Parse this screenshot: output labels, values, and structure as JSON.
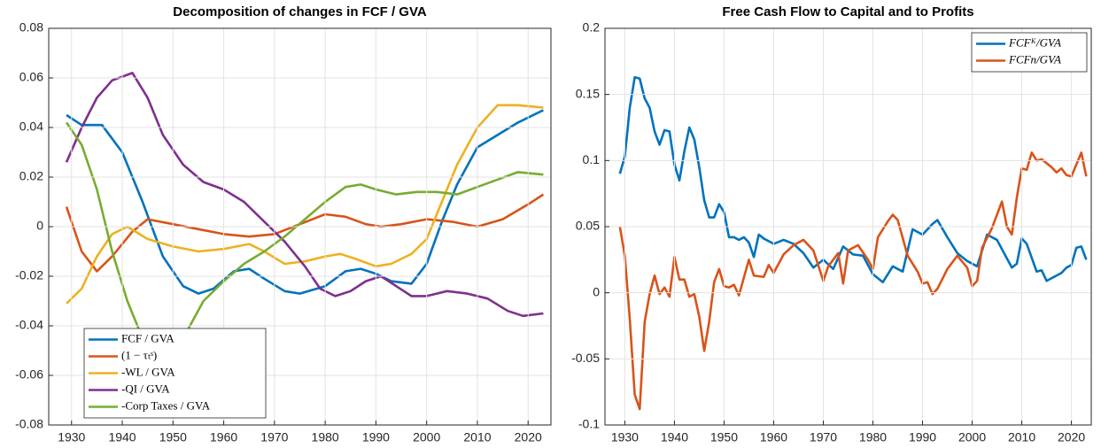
{
  "chart_data": [
    {
      "type": "line",
      "title": "Decomposition of changes in FCF / GVA",
      "xlim": [
        1925.5,
        2024.5
      ],
      "xticks": [
        1930,
        1940,
        1950,
        1960,
        1970,
        1980,
        1990,
        2000,
        2010,
        2020
      ],
      "ylim": [
        -0.08,
        0.08
      ],
      "yticks": [
        -0.08,
        -0.06,
        -0.04,
        -0.02,
        0,
        0.02,
        0.04,
        0.06,
        0.08
      ],
      "grid": true,
      "legend": "bottom-left",
      "legend_italic": false,
      "series": [
        {
          "name": "FCF / GVA",
          "color": "#0072BD",
          "x": [
            1929,
            1932,
            1936,
            1940,
            1944,
            1948,
            1952,
            1955,
            1958,
            1962,
            1965,
            1968,
            1972,
            1975,
            1980,
            1984,
            1987,
            1990,
            1993,
            1997,
            2000,
            2003,
            2006,
            2010,
            2014,
            2018,
            2023
          ],
          "values": [
            0.045,
            0.041,
            0.041,
            0.03,
            0.01,
            -0.012,
            -0.024,
            -0.027,
            -0.025,
            -0.018,
            -0.017,
            -0.021,
            -0.026,
            -0.027,
            -0.024,
            -0.018,
            -0.017,
            -0.019,
            -0.022,
            -0.023,
            -0.015,
            0.002,
            0.017,
            0.032,
            0.037,
            0.042,
            0.047
          ]
        },
        {
          "name": "(1 − τₜˢ)",
          "color": "#D95319",
          "x": [
            1929,
            1932,
            1935,
            1938,
            1942,
            1945,
            1950,
            1955,
            1960,
            1965,
            1970,
            1975,
            1980,
            1984,
            1988,
            1991,
            1995,
            2000,
            2005,
            2010,
            2015,
            2020,
            2023
          ],
          "values": [
            0.008,
            -0.01,
            -0.018,
            -0.012,
            -0.002,
            0.003,
            0.001,
            -0.001,
            -0.003,
            -0.004,
            -0.003,
            0.001,
            0.005,
            0.004,
            0.001,
            0,
            0.001,
            0.003,
            0.002,
            0,
            0.003,
            0.009,
            0.013
          ]
        },
        {
          "name": "-WL / GVA",
          "color": "#EDB120",
          "x": [
            1929,
            1932,
            1935,
            1938,
            1941,
            1945,
            1950,
            1955,
            1960,
            1965,
            1968,
            1972,
            1976,
            1980,
            1983,
            1986,
            1990,
            1993,
            1997,
            2000,
            2003,
            2006,
            2010,
            2014,
            2018,
            2023
          ],
          "values": [
            -0.031,
            -0.025,
            -0.012,
            -0.003,
            0,
            -0.005,
            -0.008,
            -0.01,
            -0.009,
            -0.007,
            -0.01,
            -0.015,
            -0.014,
            -0.012,
            -0.011,
            -0.013,
            -0.016,
            -0.015,
            -0.011,
            -0.005,
            0.01,
            0.025,
            0.04,
            0.049,
            0.049,
            0.048
          ]
        },
        {
          "name": "-QI / GVA",
          "color": "#7E2F8E",
          "x": [
            1929,
            1932,
            1935,
            1938,
            1942,
            1945,
            1948,
            1952,
            1956,
            1960,
            1964,
            1968,
            1972,
            1976,
            1979,
            1982,
            1985,
            1988,
            1991,
            1994,
            1997,
            2000,
            2004,
            2008,
            2012,
            2016,
            2019,
            2023
          ],
          "values": [
            0.026,
            0.04,
            0.052,
            0.059,
            0.062,
            0.052,
            0.037,
            0.025,
            0.018,
            0.015,
            0.01,
            0.002,
            -0.006,
            -0.016,
            -0.025,
            -0.028,
            -0.026,
            -0.022,
            -0.02,
            -0.024,
            -0.028,
            -0.028,
            -0.026,
            -0.027,
            -0.029,
            -0.034,
            -0.036,
            -0.035
          ]
        },
        {
          "name": "-Corp Taxes / GVA",
          "color": "#77AC30",
          "x": [
            1929,
            1932,
            1935,
            1938,
            1941,
            1944,
            1948,
            1952,
            1956,
            1960,
            1964,
            1968,
            1972,
            1976,
            1980,
            1984,
            1987,
            1990,
            1994,
            1998,
            2002,
            2006,
            2010,
            2014,
            2018,
            2023
          ],
          "values": [
            0.042,
            0.033,
            0.015,
            -0.01,
            -0.03,
            -0.045,
            -0.055,
            -0.045,
            -0.03,
            -0.022,
            -0.015,
            -0.01,
            -0.004,
            0.003,
            0.01,
            0.016,
            0.017,
            0.015,
            0.013,
            0.014,
            0.014,
            0.013,
            0.016,
            0.019,
            0.022,
            0.021
          ]
        }
      ]
    },
    {
      "type": "line",
      "title": "Free Cash Flow to Capital and to Profits",
      "xlim": [
        1926,
        2024
      ],
      "xticks": [
        1930,
        1940,
        1950,
        1960,
        1970,
        1980,
        1990,
        2000,
        2010,
        2020
      ],
      "ylim": [
        -0.1,
        0.2
      ],
      "yticks": [
        -0.1,
        -0.05,
        0,
        0.05,
        0.1,
        0.15,
        0.2
      ],
      "grid": true,
      "legend": "top-right",
      "legend_italic": true,
      "series": [
        {
          "name": "FCFᴷ/GVA",
          "color": "#0072BD",
          "x": [
            1929,
            1930,
            1931,
            1932,
            1933,
            1934,
            1935,
            1936,
            1937,
            1938,
            1939,
            1940,
            1941,
            1942,
            1943,
            1944,
            1945,
            1946,
            1947,
            1948,
            1949,
            1950,
            1951,
            1952,
            1953,
            1954,
            1955,
            1956,
            1957,
            1958,
            1960,
            1962,
            1964,
            1966,
            1968,
            1970,
            1972,
            1974,
            1976,
            1978,
            1980,
            1982,
            1984,
            1986,
            1988,
            1990,
            1992,
            1993,
            1995,
            1997,
            1999,
            2001,
            2003,
            2005,
            2007,
            2008,
            2009,
            2010,
            2011,
            2013,
            2014,
            2015,
            2017,
            2018,
            2019,
            2020,
            2021,
            2022,
            2023
          ],
          "values": [
            0.09,
            0.103,
            0.14,
            0.163,
            0.162,
            0.147,
            0.14,
            0.122,
            0.112,
            0.123,
            0.122,
            0.097,
            0.085,
            0.107,
            0.125,
            0.116,
            0.095,
            0.07,
            0.057,
            0.057,
            0.067,
            0.061,
            0.042,
            0.042,
            0.04,
            0.042,
            0.038,
            0.027,
            0.044,
            0.041,
            0.037,
            0.04,
            0.037,
            0.03,
            0.019,
            0.025,
            0.018,
            0.035,
            0.029,
            0.028,
            0.014,
            0.008,
            0.02,
            0.016,
            0.048,
            0.044,
            0.052,
            0.055,
            0.042,
            0.03,
            0.024,
            0.02,
            0.044,
            0.04,
            0.026,
            0.019,
            0.022,
            0.041,
            0.037,
            0.016,
            0.017,
            0.009,
            0.013,
            0.015,
            0.019,
            0.021,
            0.034,
            0.035,
            0.025
          ]
        },
        {
          "name": "FCFᴨ/GVA",
          "color": "#D95319",
          "x": [
            1929,
            1930,
            1931,
            1932,
            1933,
            1934,
            1935,
            1936,
            1937,
            1938,
            1939,
            1940,
            1941,
            1942,
            1943,
            1944,
            1945,
            1946,
            1947,
            1948,
            1949,
            1950,
            1951,
            1952,
            1953,
            1955,
            1956,
            1958,
            1959,
            1960,
            1962,
            1964,
            1966,
            1968,
            1970,
            1971,
            1973,
            1974,
            1975,
            1977,
            1979,
            1980,
            1981,
            1983,
            1984,
            1985,
            1987,
            1989,
            1990,
            1991,
            1992,
            1993,
            1995,
            1997,
            1999,
            2000,
            2001,
            2002,
            2004,
            2006,
            2007,
            2008,
            2009,
            2010,
            2011,
            2012,
            2013,
            2014,
            2016,
            2017,
            2018,
            2019,
            2020,
            2021,
            2022,
            2023
          ],
          "values": [
            0.05,
            0.028,
            -0.02,
            -0.077,
            -0.088,
            -0.022,
            -0.001,
            0.013,
            -0.001,
            0.004,
            -0.003,
            0.027,
            0.01,
            0.01,
            -0.003,
            -0.001,
            -0.018,
            -0.044,
            -0.022,
            0.008,
            0.018,
            0.005,
            0.004,
            0.006,
            -0.002,
            0.025,
            0.013,
            0.012,
            0.021,
            0.015,
            0.029,
            0.036,
            0.04,
            0.032,
            0.009,
            0.02,
            0.03,
            0.007,
            0.032,
            0.036,
            0.025,
            0.018,
            0.042,
            0.054,
            0.059,
            0.055,
            0.028,
            0.016,
            0.007,
            0.008,
            -0.001,
            0.003,
            0.018,
            0.028,
            0.019,
            0.005,
            0.009,
            0.034,
            0.049,
            0.069,
            0.05,
            0.044,
            0.072,
            0.094,
            0.093,
            0.106,
            0.1,
            0.101,
            0.095,
            0.091,
            0.094,
            0.089,
            0.088,
            0.097,
            0.106,
            0.088
          ]
        }
      ]
    }
  ]
}
